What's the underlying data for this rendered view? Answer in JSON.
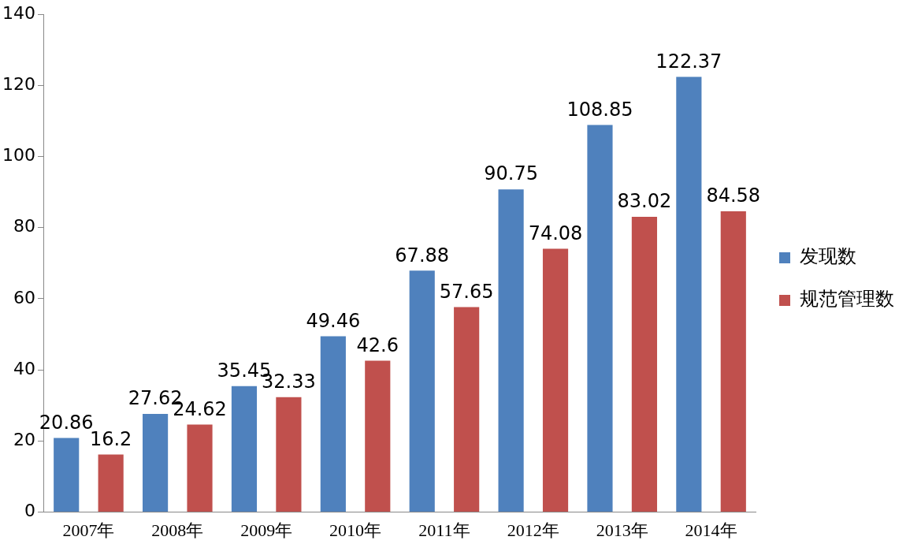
{
  "chart_data": {
    "type": "bar",
    "categories": [
      "2007年",
      "2008年",
      "2009年",
      "2010年",
      "2011年",
      "2012年",
      "2013年",
      "2014年"
    ],
    "series": [
      {
        "name": "发现数",
        "color": "#4f81bd",
        "values": [
          20.86,
          27.62,
          35.45,
          49.46,
          67.88,
          90.75,
          108.85,
          122.37
        ]
      },
      {
        "name": "规范管理数",
        "color": "#c0504d",
        "values": [
          16.2,
          24.62,
          32.33,
          42.6,
          57.65,
          74.08,
          83.02,
          84.58
        ]
      }
    ],
    "ylim": [
      0,
      140
    ],
    "yticks": [
      0,
      20,
      40,
      60,
      80,
      100,
      120,
      140
    ],
    "grid": false,
    "legend": "right",
    "data_labels": true
  }
}
